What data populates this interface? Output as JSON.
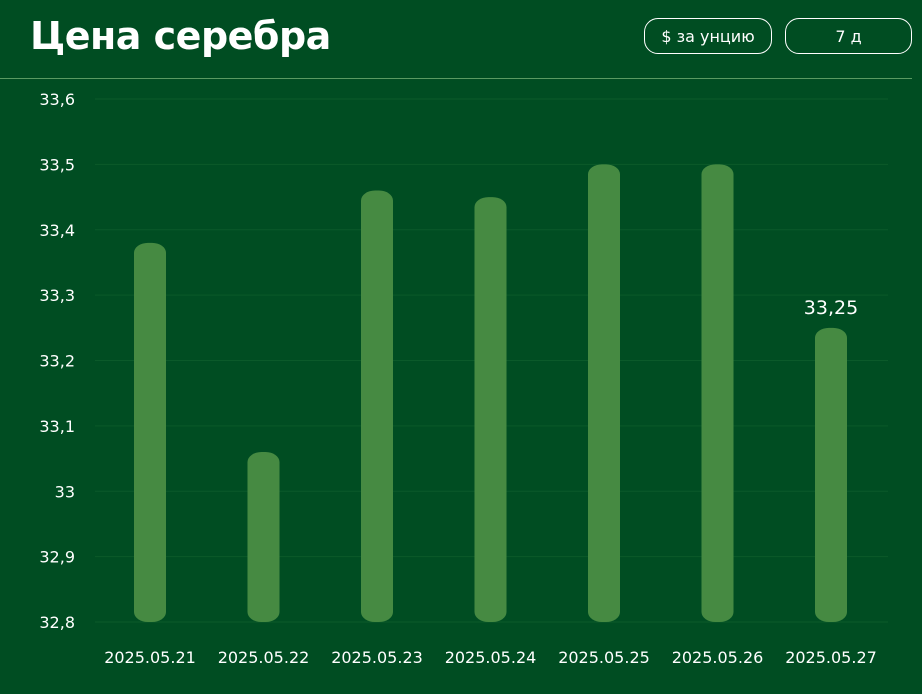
{
  "header": {
    "title": "Цена серебра",
    "unit_button": "$ за унцию",
    "period_button": "7 д"
  },
  "colors": {
    "background": "#004d22",
    "bar": "#468a42",
    "grid": "#0b5a2a",
    "text": "#ffffff"
  },
  "chart_data": {
    "type": "bar",
    "title": "Цена серебра",
    "xlabel": "",
    "ylabel": "",
    "categories": [
      "2025.05.21",
      "2025.05.22",
      "2025.05.23",
      "2025.05.24",
      "2025.05.25",
      "2025.05.26",
      "2025.05.27"
    ],
    "values": [
      33.38,
      33.06,
      33.46,
      33.45,
      33.5,
      33.5,
      33.25
    ],
    "ylim": [
      32.8,
      33.6
    ],
    "yticks": [
      "33,6",
      "33,5",
      "33,4",
      "33,3",
      "33,2",
      "33,1",
      "33",
      "32,9",
      "32,8"
    ],
    "data_labels": [
      {
        "category": "2025.05.27",
        "text": "33,25"
      }
    ],
    "grid": true,
    "legend": "none"
  }
}
